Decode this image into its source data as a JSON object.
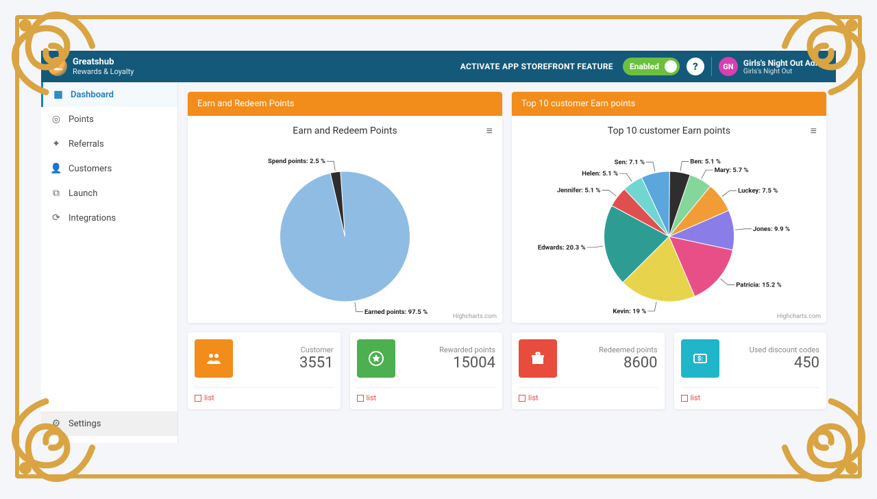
{
  "brand": {
    "title": "Greatshub",
    "subtitle": "Rewards & Loyalty"
  },
  "header": {
    "activate_text": "ACTIVATE APP STOREFRONT FEATURE",
    "enabled_label": "Enabled",
    "help_glyph": "?",
    "account_initials": "GN",
    "account_title": "Girls's Night Out Admin",
    "account_sub": "Girls's Night Out"
  },
  "sidebar": {
    "items": [
      {
        "label": "Dashboard",
        "icon": "grid",
        "active": true
      },
      {
        "label": "Points",
        "icon": "coins"
      },
      {
        "label": "Referrals",
        "icon": "wand"
      },
      {
        "label": "Customers",
        "icon": "user"
      },
      {
        "label": "Launch",
        "icon": "launch"
      },
      {
        "label": "Integrations",
        "icon": "sync"
      }
    ],
    "settings_label": "Settings"
  },
  "chart_credit": "Highcharts.com",
  "earn_redeem": {
    "header": "Earn and Redeem Points",
    "title": "Earn and Redeem Points",
    "type": "pie",
    "slices": [
      {
        "label": "Earned points",
        "pct": 97.5,
        "color": "#8fbce3"
      },
      {
        "label": "Spend points",
        "pct": 2.5,
        "color": "#2e2e2e"
      }
    ]
  },
  "top_customers": {
    "header": "Top 10 customer Earn points",
    "title": "Top 10 customer Earn points",
    "type": "pie",
    "slices": [
      {
        "label": "Sen",
        "pct": 7.1,
        "color": "#5aa6dd"
      },
      {
        "label": "Ben",
        "pct": 5.1,
        "color": "#2e2e2e"
      },
      {
        "label": "Mary",
        "pct": 5.7,
        "color": "#84d69a"
      },
      {
        "label": "Luckey",
        "pct": 7.5,
        "color": "#f29c38"
      },
      {
        "label": "Jones",
        "pct": 9.9,
        "color": "#8b7de8"
      },
      {
        "label": "Patricia",
        "pct": 15.2,
        "color": "#e94f87"
      },
      {
        "label": "Kevin",
        "pct": 19.0,
        "color": "#e8d44c"
      },
      {
        "label": "Edwards",
        "pct": 20.3,
        "color": "#2d9d94"
      },
      {
        "label": "Jennifer",
        "pct": 5.1,
        "color": "#e04f4f"
      },
      {
        "label": "Helen",
        "pct": 5.1,
        "color": "#6fd6d0"
      }
    ]
  },
  "stats": [
    {
      "label": "Customer",
      "value": "3551",
      "color": "#f28c1b",
      "icon": "users"
    },
    {
      "label": "Rewarded points",
      "value": "15004",
      "color": "#4caf50",
      "icon": "star"
    },
    {
      "label": "Redeemed points",
      "value": "8600",
      "color": "#e74c3c",
      "icon": "gift"
    },
    {
      "label": "Used discount codes",
      "value": "450",
      "color": "#1fb6c9",
      "icon": "code"
    }
  ],
  "list_link_label": "list"
}
